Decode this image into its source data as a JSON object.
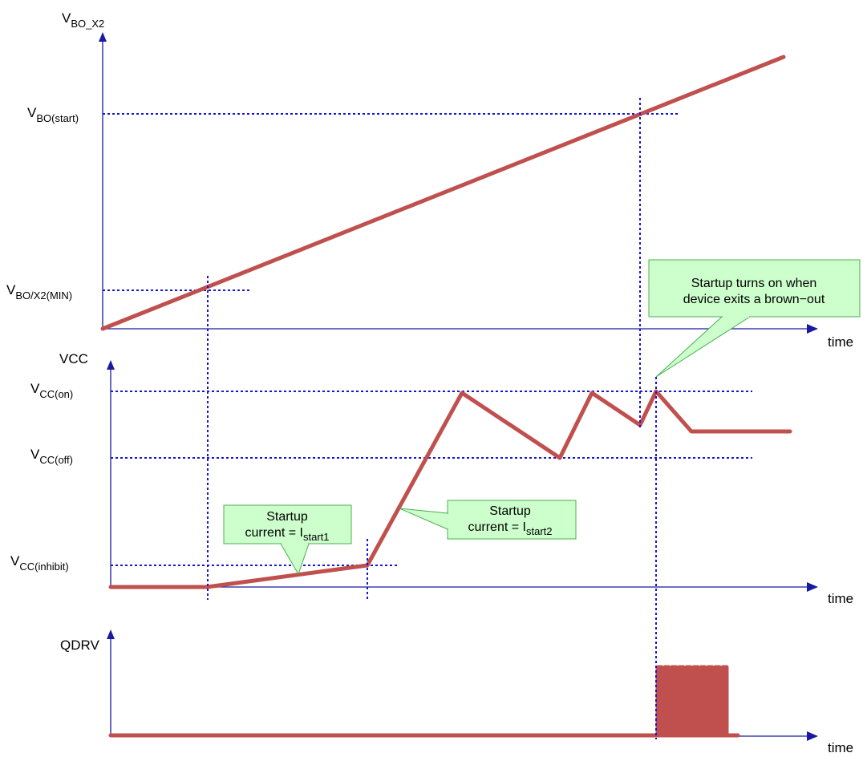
{
  "top_panel": {
    "y_axis": {
      "main": "V",
      "sub": "BO_X2"
    },
    "x_axis_label": "time",
    "levels": {
      "bo_start": {
        "main": "V",
        "sub": "BO(start)"
      },
      "bo_min": {
        "main": "V",
        "sub": "BO/X2(MIN)"
      }
    }
  },
  "middle_panel": {
    "y_axis_label": "VCC",
    "x_axis_label": "time",
    "levels": {
      "cc_on": {
        "main": "V",
        "sub": "CC(on)"
      },
      "cc_off": {
        "main": "V",
        "sub": "CC(off)"
      },
      "cc_inhibit": {
        "main": "V",
        "sub": "CC(inhibit)"
      }
    }
  },
  "bottom_panel": {
    "y_axis_label": "QDRV",
    "x_axis_label": "time"
  },
  "callouts": {
    "brownout": {
      "line1": "Startup turns on when",
      "line2": "device exits a brown−out"
    },
    "istart1": {
      "line1": "Startup",
      "line2_prefix": "current = I",
      "line2_sub": "start1"
    },
    "istart2": {
      "line1": "Startup",
      "line2_prefix": "current = I",
      "line2_sub": "start2"
    }
  },
  "colors": {
    "trace": "#c0504d",
    "axis": "#1a1aa0",
    "guide": "#1515d8",
    "callout_fill": "#ccffcc",
    "callout_border": "#4caf50"
  }
}
